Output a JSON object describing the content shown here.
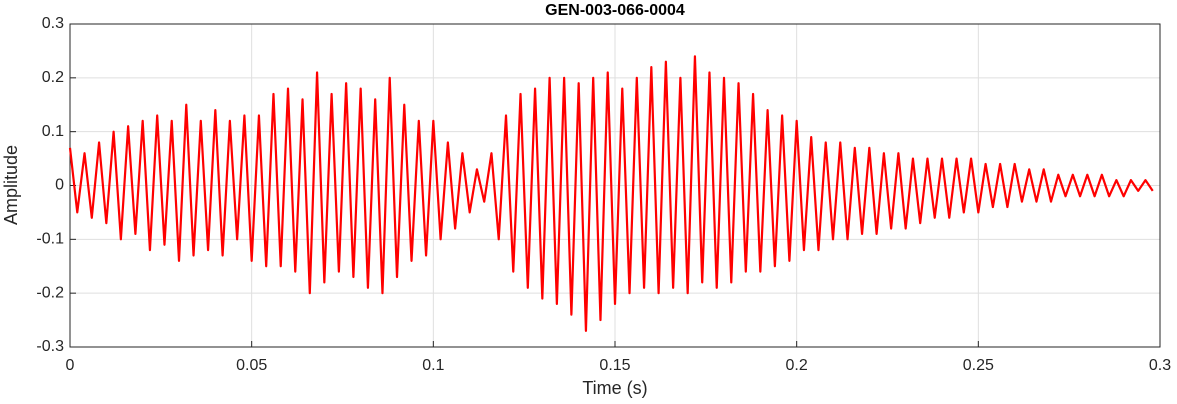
{
  "chart_data": {
    "type": "line",
    "title": "GEN-003-066-0004",
    "xlabel": "Time (s)",
    "ylabel": "Amplitude",
    "color": "#ff0000",
    "grid": true,
    "xlim": [
      0,
      0.3
    ],
    "ylim": [
      -0.3,
      0.3
    ],
    "xticks": [
      0,
      0.05,
      0.1,
      0.15,
      0.2,
      0.25,
      0.3
    ],
    "yticks": [
      -0.3,
      -0.2,
      -0.1,
      0,
      0.1,
      0.2,
      0.3
    ],
    "x": [
      0,
      0.002,
      0.004,
      0.006,
      0.008,
      0.01,
      0.012,
      0.014,
      0.016,
      0.018,
      0.02,
      0.022,
      0.024,
      0.026,
      0.028,
      0.03,
      0.032,
      0.034,
      0.036,
      0.038,
      0.04,
      0.042,
      0.044,
      0.046,
      0.048,
      0.05,
      0.052,
      0.054,
      0.056,
      0.058,
      0.06,
      0.062,
      0.064,
      0.066,
      0.068,
      0.07,
      0.072,
      0.074,
      0.076,
      0.078,
      0.08,
      0.082,
      0.084,
      0.086,
      0.088,
      0.09,
      0.092,
      0.094,
      0.096,
      0.098,
      0.1,
      0.102,
      0.104,
      0.106,
      0.108,
      0.11,
      0.112,
      0.114,
      0.116,
      0.118,
      0.12,
      0.122,
      0.124,
      0.126,
      0.128,
      0.13,
      0.132,
      0.134,
      0.136,
      0.138,
      0.14,
      0.142,
      0.144,
      0.146,
      0.148,
      0.15,
      0.152,
      0.154,
      0.156,
      0.158,
      0.16,
      0.162,
      0.164,
      0.166,
      0.168,
      0.17,
      0.172,
      0.174,
      0.176,
      0.178,
      0.18,
      0.182,
      0.184,
      0.186,
      0.188,
      0.19,
      0.192,
      0.194,
      0.196,
      0.198,
      0.2,
      0.202,
      0.204,
      0.206,
      0.208,
      0.21,
      0.212,
      0.214,
      0.216,
      0.218,
      0.22,
      0.222,
      0.224,
      0.226,
      0.228,
      0.23,
      0.232,
      0.234,
      0.236,
      0.238,
      0.24,
      0.242,
      0.244,
      0.246,
      0.248,
      0.25,
      0.252,
      0.254,
      0.256,
      0.258,
      0.26,
      0.262,
      0.264,
      0.266,
      0.268,
      0.27,
      0.272,
      0.274,
      0.276,
      0.278,
      0.28,
      0.282,
      0.284,
      0.286,
      0.288,
      0.29,
      0.292,
      0.294,
      0.296,
      0.298
    ],
    "values": [
      0.07,
      -0.05,
      0.06,
      -0.06,
      0.08,
      -0.07,
      0.1,
      -0.1,
      0.11,
      -0.09,
      0.12,
      -0.12,
      0.13,
      -0.11,
      0.12,
      -0.14,
      0.15,
      -0.13,
      0.12,
      -0.12,
      0.14,
      -0.13,
      0.12,
      -0.1,
      0.13,
      -0.14,
      0.13,
      -0.15,
      0.17,
      -0.15,
      0.18,
      -0.16,
      0.16,
      -0.2,
      0.21,
      -0.18,
      0.17,
      -0.16,
      0.19,
      -0.17,
      0.18,
      -0.19,
      0.16,
      -0.2,
      0.2,
      -0.17,
      0.15,
      -0.14,
      0.12,
      -0.13,
      0.12,
      -0.1,
      0.08,
      -0.08,
      0.06,
      -0.05,
      0.03,
      -0.03,
      0.06,
      -0.1,
      0.13,
      -0.16,
      0.17,
      -0.19,
      0.18,
      -0.21,
      0.2,
      -0.22,
      0.2,
      -0.24,
      0.19,
      -0.27,
      0.2,
      -0.25,
      0.21,
      -0.22,
      0.18,
      -0.2,
      0.2,
      -0.19,
      0.22,
      -0.2,
      0.23,
      -0.19,
      0.2,
      -0.2,
      0.24,
      -0.18,
      0.21,
      -0.19,
      0.2,
      -0.18,
      0.19,
      -0.16,
      0.17,
      -0.16,
      0.14,
      -0.15,
      0.13,
      -0.14,
      0.12,
      -0.12,
      0.09,
      -0.12,
      0.08,
      -0.1,
      0.08,
      -0.1,
      0.07,
      -0.09,
      0.07,
      -0.09,
      0.06,
      -0.08,
      0.06,
      -0.08,
      0.05,
      -0.07,
      0.05,
      -0.06,
      0.05,
      -0.06,
      0.05,
      -0.05,
      0.05,
      -0.05,
      0.04,
      -0.04,
      0.04,
      -0.04,
      0.04,
      -0.03,
      0.03,
      -0.03,
      0.03,
      -0.03,
      0.02,
      -0.02,
      0.02,
      -0.02,
      0.02,
      -0.02,
      0.02,
      -0.02,
      0.01,
      -0.02,
      0.01,
      -0.01,
      0.01,
      -0.01
    ]
  }
}
